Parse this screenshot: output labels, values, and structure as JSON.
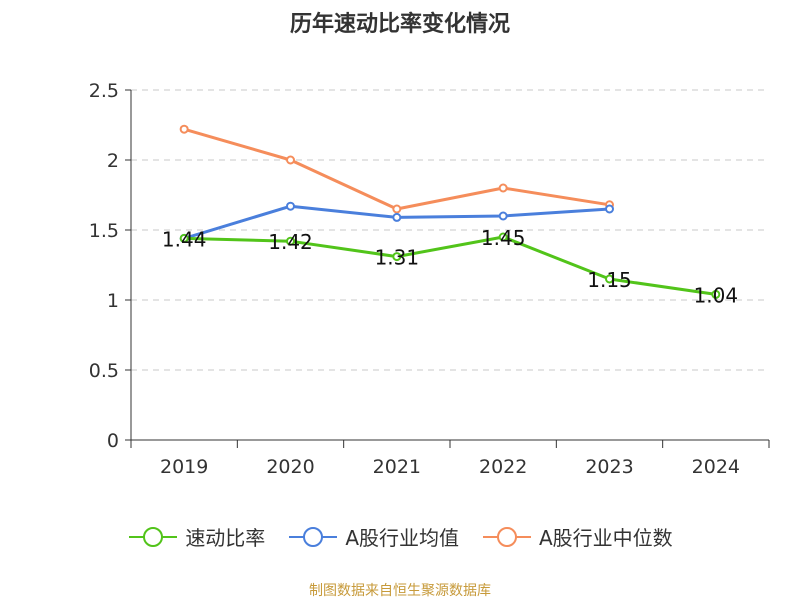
{
  "chart_data": {
    "type": "line",
    "title": "历年速动比率变化情况",
    "categories": [
      "2019",
      "2020",
      "2021",
      "2022",
      "2023",
      "2024"
    ],
    "ylim": [
      0,
      2.5
    ],
    "yticks": [
      "0",
      "0.5",
      "1",
      "1.5",
      "2",
      "2.5"
    ],
    "grid": true,
    "legend_position": "bottom",
    "series": [
      {
        "name": "速动比率",
        "color": "#52c41a",
        "values": [
          1.44,
          1.42,
          1.31,
          1.45,
          1.15,
          1.04
        ],
        "labels": [
          "1.44",
          "1.42",
          "1.31",
          "1.45",
          "1.15",
          "1.04"
        ]
      },
      {
        "name": "A股行业均值",
        "color": "#4a7fdc",
        "values": [
          1.44,
          1.67,
          1.59,
          1.6,
          1.65,
          null
        ]
      },
      {
        "name": "A股行业中位数",
        "color": "#f58d5b",
        "values": [
          2.22,
          2.0,
          1.65,
          1.8,
          1.68,
          null
        ]
      }
    ]
  },
  "source_text": "制图数据来自恒生聚源数据库"
}
